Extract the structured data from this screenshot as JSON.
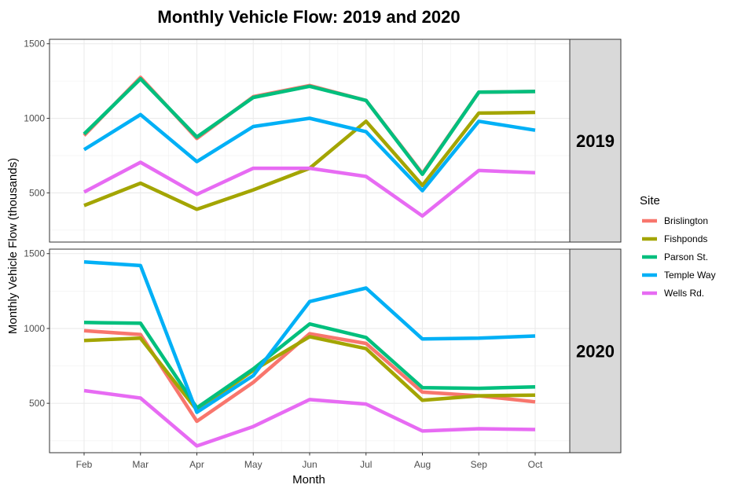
{
  "chart_data": {
    "type": "line",
    "title": "Monthly Vehicle Flow: 2019 and 2020",
    "xlabel": "Month",
    "ylabel": "Monthly Vehicle Flow (thousands)",
    "categories": [
      "Feb",
      "Mar",
      "Apr",
      "May",
      "Jun",
      "Jul",
      "Aug",
      "Sep",
      "Oct"
    ],
    "ylim": [
      170,
      1530
    ],
    "yticks": [
      500,
      1000,
      1500
    ],
    "grid": true,
    "legend": {
      "title": "Site",
      "position": "right",
      "entries": [
        "Brislington",
        "Fishponds",
        "Parson St.",
        "Temple Way",
        "Wells Rd."
      ]
    },
    "colors": {
      "Brislington": "#F8766D",
      "Fishponds": "#A3A500",
      "Parson St.": "#00BF7D",
      "Temple Way": "#00B0F6",
      "Wells Rd.": "#E76BF3"
    },
    "panels": [
      {
        "label": "2019",
        "series": [
          {
            "name": "Brislington",
            "values": [
              885,
              1275,
              865,
              1145,
              1220,
              1120,
              630,
              1175,
              1180
            ]
          },
          {
            "name": "Fishponds",
            "values": [
              415,
              565,
              390,
              520,
              665,
              980,
              550,
              1035,
              1040
            ]
          },
          {
            "name": "Parson St.",
            "values": [
              895,
              1265,
              875,
              1140,
              1215,
              1120,
              625,
              1175,
              1180
            ]
          },
          {
            "name": "Temple Way",
            "values": [
              790,
              1025,
              710,
              945,
              1000,
              910,
              515,
              980,
              920
            ]
          },
          {
            "name": "Wells Rd.",
            "values": [
              505,
              705,
              490,
              665,
              665,
              610,
              345,
              650,
              635
            ]
          }
        ]
      },
      {
        "label": "2020",
        "series": [
          {
            "name": "Brislington",
            "values": [
              985,
              960,
              380,
              640,
              965,
              900,
              575,
              550,
              510
            ]
          },
          {
            "name": "Fishponds",
            "values": [
              920,
              935,
              455,
              720,
              945,
              865,
              520,
              550,
              555
            ]
          },
          {
            "name": "Parson St.",
            "values": [
              1040,
              1035,
              470,
              730,
              1030,
              940,
              605,
              600,
              610
            ]
          },
          {
            "name": "Temple Way",
            "values": [
              1445,
              1420,
              440,
              685,
              1180,
              1270,
              930,
              935,
              950
            ]
          },
          {
            "name": "Wells Rd.",
            "values": [
              585,
              535,
              215,
              345,
              525,
              495,
              315,
              330,
              325
            ]
          }
        ]
      }
    ]
  }
}
